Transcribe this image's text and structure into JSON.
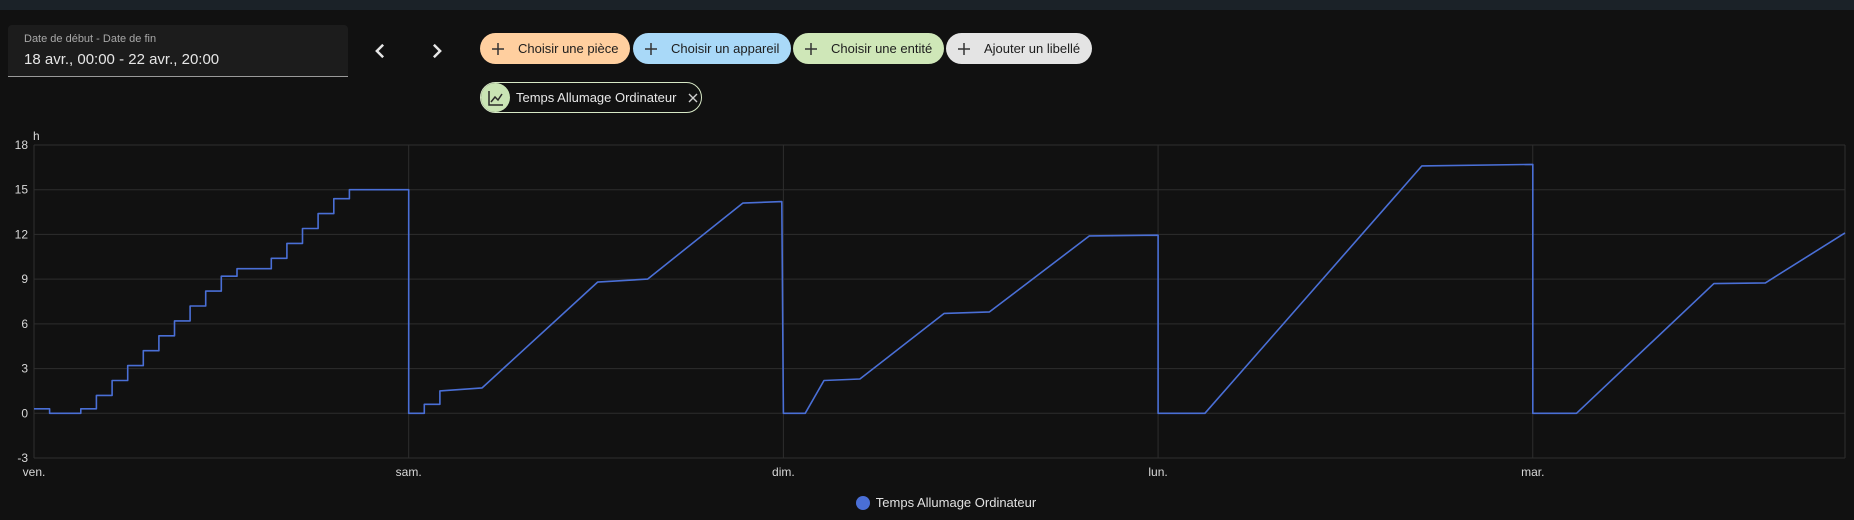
{
  "date_range": {
    "label": "Date de début - Date de fin",
    "value": "18 avr., 00:00 - 22 avr., 20:00"
  },
  "filters": [
    {
      "label": "Choisir une pièce",
      "bg": "#ffcf9f"
    },
    {
      "label": "Choisir un appareil",
      "bg": "#a9d9f8"
    },
    {
      "label": "Choisir une entité",
      "bg": "#cfe7b8"
    },
    {
      "label": "Ajouter un libellé",
      "bg": "#e4e4e4"
    }
  ],
  "selected_entity": {
    "label": "Temps Allumage Ordinateur",
    "icon": "chart-line-icon"
  },
  "colors": {
    "series": "#4a6fd6",
    "background": "#111111",
    "grid": "#2e2e2e"
  },
  "chart_data": {
    "type": "line",
    "ylabel": "h",
    "ylim": [
      -3,
      18
    ],
    "yticks": [
      -3,
      0,
      3,
      6,
      9,
      12,
      15,
      18
    ],
    "x_unit": "hours since Friday 00:00",
    "xlim": [
      0,
      116
    ],
    "xticks": [
      {
        "x": 0,
        "label": "ven."
      },
      {
        "x": 24,
        "label": "sam."
      },
      {
        "x": 48,
        "label": "dim."
      },
      {
        "x": 72,
        "label": "lun."
      },
      {
        "x": 96,
        "label": "mar."
      }
    ],
    "grid": true,
    "legend": "bottom-center",
    "series": [
      {
        "name": "Temps Allumage Ordinateur",
        "step_segments": [
          [
            0,
            0.3
          ],
          [
            1,
            0.0
          ],
          [
            3,
            0.3
          ],
          [
            4,
            1.2
          ],
          [
            5,
            2.2
          ],
          [
            6,
            3.2
          ],
          [
            7,
            4.2
          ],
          [
            8,
            5.2
          ],
          [
            9,
            6.2
          ],
          [
            10,
            7.2
          ],
          [
            11,
            8.2
          ],
          [
            12,
            9.2
          ],
          [
            13,
            9.7
          ],
          [
            15.2,
            10.4
          ],
          [
            16.2,
            11.4
          ],
          [
            17.2,
            12.4
          ],
          [
            18.2,
            13.4
          ],
          [
            19.2,
            14.4
          ],
          [
            20.2,
            15.0
          ]
        ],
        "points": [
          [
            24,
            15.0
          ],
          [
            24,
            0
          ],
          [
            25,
            0
          ],
          [
            25,
            0.6
          ],
          [
            26,
            0.6
          ],
          [
            26,
            1.5
          ],
          [
            28.7,
            1.7
          ],
          [
            36.1,
            8.8
          ],
          [
            39.3,
            9.0
          ],
          [
            45.4,
            14.1
          ],
          [
            47.9,
            14.2
          ],
          [
            48,
            0
          ],
          [
            49.4,
            0
          ],
          [
            50.6,
            2.2
          ],
          [
            52.9,
            2.3
          ],
          [
            58.3,
            6.7
          ],
          [
            61.2,
            6.8
          ],
          [
            67.6,
            11.9
          ],
          [
            72,
            11.95
          ],
          [
            72,
            0
          ],
          [
            75,
            0
          ],
          [
            88.9,
            16.6
          ],
          [
            96,
            16.7
          ],
          [
            96,
            0
          ],
          [
            98.8,
            0
          ],
          [
            107.6,
            8.7
          ],
          [
            110.9,
            8.75
          ],
          [
            116,
            12.1
          ]
        ]
      }
    ]
  }
}
